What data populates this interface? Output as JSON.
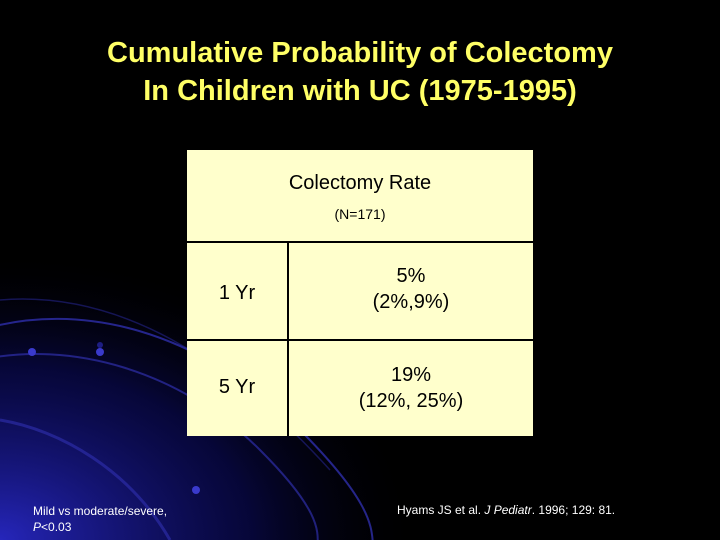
{
  "title": {
    "line1": "Cumulative Probability of Colectomy",
    "line2": "In Children with UC (1975-1995)"
  },
  "table": {
    "header": "Colectomy Rate",
    "subheader": "(N=171)",
    "rows": [
      {
        "label": "1 Yr",
        "value_line1": "5%",
        "value_line2": "(2%,9%)"
      },
      {
        "label": "5 Yr",
        "value_line1": "19%",
        "value_line2": "(12%, 25%)"
      }
    ]
  },
  "footnote": {
    "line1": "Mild vs moderate/severe,",
    "p_label": "P",
    "p_value": "<0.03"
  },
  "citation": {
    "prefix": "Hyams JS et al.",
    "journal": "J Pediatr",
    "suffix": ". 1996; 129: 81."
  },
  "colors": {
    "background": "#000000",
    "title": "#ffff66",
    "table_fill": "#ffffcc",
    "accent_blue": "#1a1aa0"
  }
}
